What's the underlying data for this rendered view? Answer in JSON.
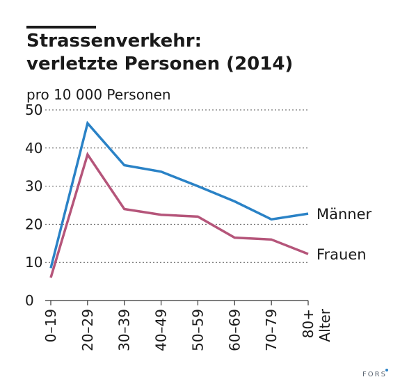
{
  "chart_data": {
    "type": "line",
    "title_lines": [
      "Strassenverkehr:",
      "verletzte Personen (2014)"
    ],
    "unit_label": "pro 10 000 Personen",
    "xlabel": "Alter",
    "categories": [
      "0–19",
      "20–29",
      "30–39",
      "40–49",
      "50–59",
      "60–69",
      "70–79",
      "80+"
    ],
    "ylim": [
      0,
      50
    ],
    "yticks": [
      "0",
      "10",
      "20",
      "30",
      "40",
      "50"
    ],
    "grid": true,
    "series": [
      {
        "name": "Männer",
        "color": "#2a82c6",
        "values": [
          8.5,
          46.5,
          35.5,
          33.8,
          30.0,
          26.0,
          21.3,
          22.8
        ]
      },
      {
        "name": "Frauen",
        "color": "#b5557a",
        "values": [
          6.0,
          38.3,
          24.0,
          22.5,
          22.0,
          16.5,
          16.0,
          12.2
        ]
      }
    ]
  },
  "branding": {
    "text": "FORS",
    "dot_color": "#2a82c6"
  }
}
